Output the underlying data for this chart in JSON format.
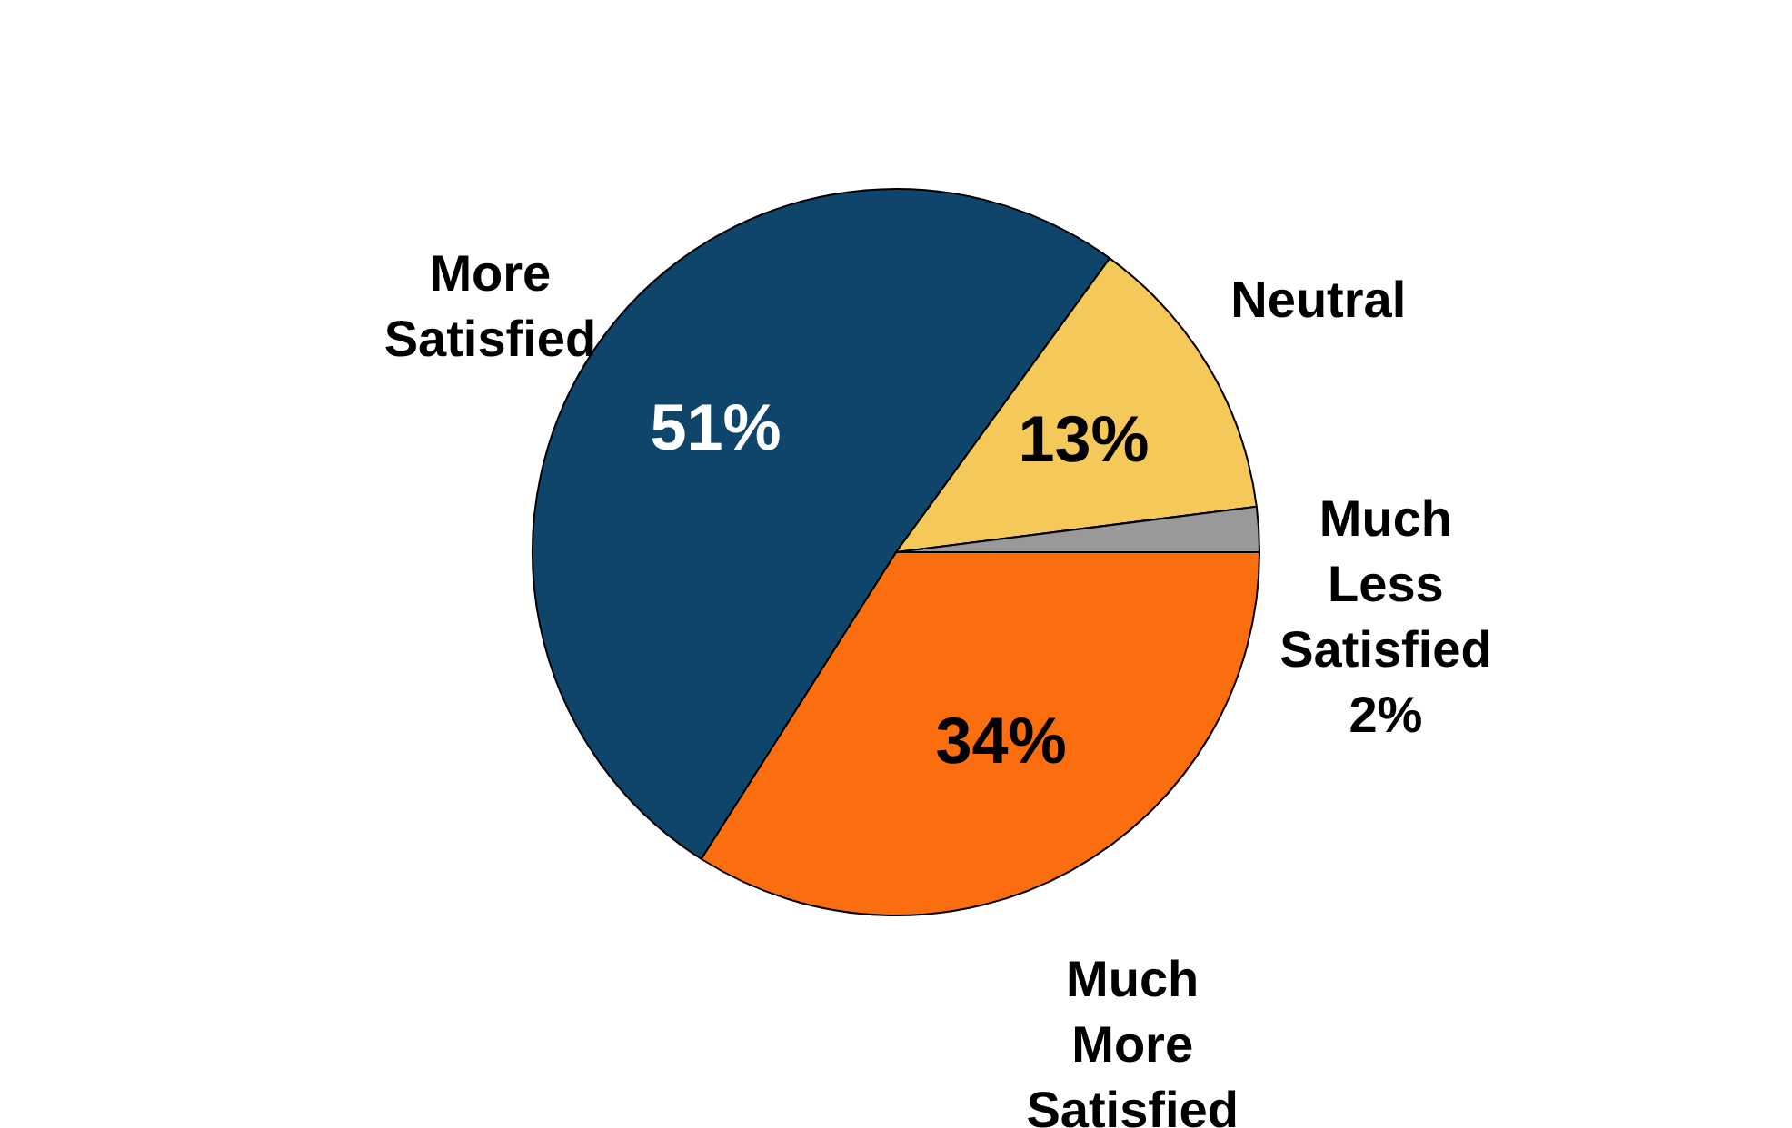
{
  "chart_data": {
    "type": "pie",
    "categories": [
      "Much More Satisfied",
      "More Satisfied",
      "Neutral",
      "Much Less Satisfied"
    ],
    "values": [
      34,
      51,
      13,
      2
    ],
    "colors": [
      "#fb6e10",
      "#0f446b",
      "#f5c85a",
      "#999999"
    ],
    "value_labels": [
      "34%",
      "51%",
      "13%",
      "2%"
    ],
    "legend": false
  }
}
